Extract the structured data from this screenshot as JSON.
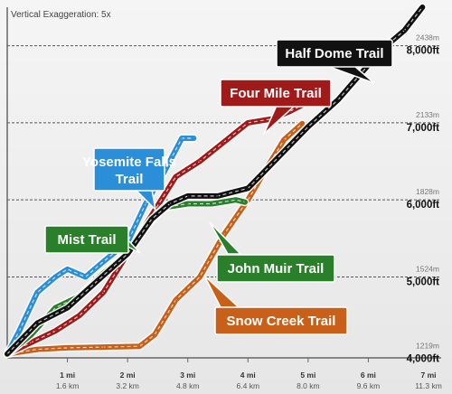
{
  "chart_data": {
    "type": "line",
    "note": "Vertical Exaggeration: 5x",
    "xlim": [
      0,
      7
    ],
    "ylim": [
      3950,
      8500
    ],
    "x_ticks": [
      {
        "value": 1,
        "mi": "1 mi",
        "km": "1.6 km"
      },
      {
        "value": 2,
        "mi": "2 mi",
        "km": "3.2 km"
      },
      {
        "value": 3,
        "mi": "3 mi",
        "km": "4.8 km"
      },
      {
        "value": 4,
        "mi": "4 mi",
        "km": "6.4 km"
      },
      {
        "value": 5,
        "mi": "5 mi",
        "km": "8.0 km"
      },
      {
        "value": 6,
        "mi": "6 mi",
        "km": "9.6 km"
      },
      {
        "value": 7,
        "mi": "7 mi",
        "km": "11.3 km"
      }
    ],
    "y_ticks": [
      {
        "value": 4000,
        "ft": "4,000ft",
        "m": "1219m"
      },
      {
        "value": 5000,
        "ft": "5,000ft",
        "m": "1524m"
      },
      {
        "value": 6000,
        "ft": "6,000ft",
        "m": "1828m"
      },
      {
        "value": 7000,
        "ft": "7,000ft",
        "m": "2133m"
      },
      {
        "value": 8000,
        "ft": "8,000ft",
        "m": "2438m"
      }
    ],
    "grid": "horizontal dashed",
    "series": [
      {
        "name": "Snow Creek Trail",
        "color": "#c8601a",
        "points": [
          [
            0.0,
            4000
          ],
          [
            0.5,
            4060
          ],
          [
            1.0,
            4080
          ],
          [
            1.6,
            4090
          ],
          [
            2.2,
            4100
          ],
          [
            2.45,
            4250
          ],
          [
            2.8,
            4700
          ],
          [
            3.2,
            5000
          ],
          [
            3.6,
            5550
          ],
          [
            4.0,
            6000
          ],
          [
            4.3,
            6400
          ],
          [
            4.6,
            6780
          ],
          [
            4.9,
            6990
          ]
        ]
      },
      {
        "name": "Four Mile Trail",
        "color": "#a01a1a",
        "points": [
          [
            0.0,
            4000
          ],
          [
            0.4,
            4150
          ],
          [
            0.8,
            4300
          ],
          [
            1.2,
            4500
          ],
          [
            1.6,
            4800
          ],
          [
            2.0,
            5300
          ],
          [
            2.4,
            5800
          ],
          [
            2.8,
            6300
          ],
          [
            3.2,
            6500
          ],
          [
            3.6,
            6750
          ],
          [
            4.0,
            7000
          ],
          [
            4.4,
            7050
          ],
          [
            4.7,
            7150
          ],
          [
            4.95,
            7250
          ]
        ]
      },
      {
        "name": "Yosemite Falls Trail",
        "color": "#2a8ed8",
        "points": [
          [
            0.0,
            4000
          ],
          [
            0.2,
            4300
          ],
          [
            0.5,
            4800
          ],
          [
            0.8,
            5000
          ],
          [
            1.0,
            5100
          ],
          [
            1.3,
            5000
          ],
          [
            1.6,
            5200
          ],
          [
            2.0,
            5450
          ],
          [
            2.3,
            5950
          ],
          [
            2.6,
            6350
          ],
          [
            2.9,
            6800
          ],
          [
            3.1,
            6800
          ]
        ]
      },
      {
        "name": "Mist Trail",
        "color": "#2a7f2a",
        "points": [
          [
            0.0,
            4000
          ],
          [
            0.4,
            4250
          ],
          [
            0.8,
            4600
          ],
          [
            1.2,
            4750
          ],
          [
            1.6,
            5050
          ],
          [
            2.0,
            5300
          ],
          [
            2.3,
            5650
          ],
          [
            2.6,
            5900
          ],
          [
            3.0,
            5950
          ],
          [
            3.4,
            5950
          ],
          [
            3.8,
            6000
          ],
          [
            3.95,
            5970
          ]
        ]
      },
      {
        "name": "Half Dome Trail",
        "color": "#111111",
        "points": [
          [
            0.0,
            4000
          ],
          [
            0.5,
            4400
          ],
          [
            1.0,
            4600
          ],
          [
            1.5,
            4950
          ],
          [
            2.0,
            5300
          ],
          [
            2.4,
            5750
          ],
          [
            2.7,
            5950
          ],
          [
            3.0,
            6050
          ],
          [
            3.5,
            6050
          ],
          [
            4.0,
            6150
          ],
          [
            4.5,
            6550
          ],
          [
            5.0,
            6950
          ],
          [
            5.5,
            7300
          ],
          [
            6.0,
            7750
          ],
          [
            6.3,
            8000
          ],
          [
            6.6,
            8200
          ],
          [
            6.9,
            8500
          ]
        ]
      }
    ]
  },
  "callouts": {
    "half_dome": "Half Dome Trail",
    "four_mile": "Four Mile Trail",
    "yosemite_falls_1": "Yosemite Falls",
    "yosemite_falls_2": "Trail",
    "mist": "Mist Trail",
    "john_muir": "John Muir Trail",
    "snow_creek": "Snow Creek Trail"
  },
  "colors": {
    "half_dome": "#111111",
    "four_mile": "#a01a1a",
    "yosemite_falls": "#2a8ed8",
    "mist": "#2a7f2a",
    "john_muir": "#2a7f2a",
    "snow_creek": "#c8601a"
  }
}
